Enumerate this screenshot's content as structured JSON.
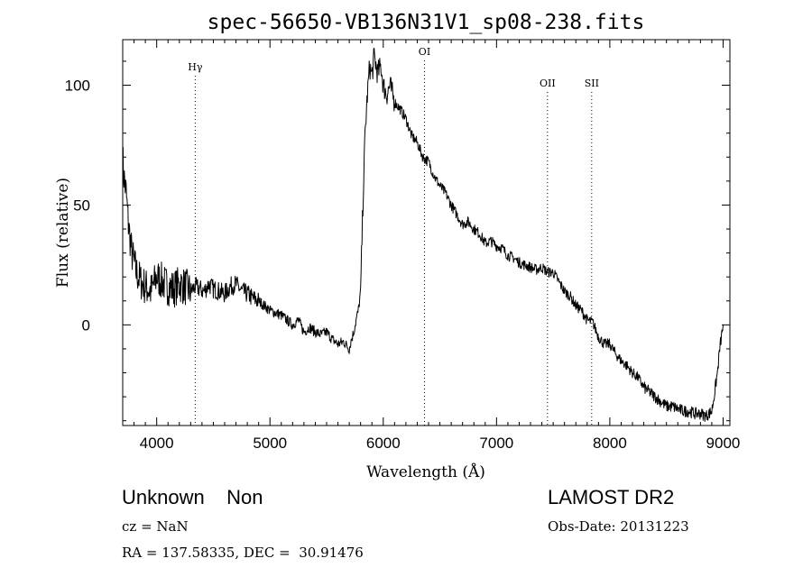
{
  "chart_data": {
    "type": "line",
    "title": "spec-56650-VB136N31V1_sp08-238.fits",
    "xlabel": "Wavelength (Å)",
    "ylabel": "Flux (relative)",
    "xlim": [
      3700,
      9060
    ],
    "ylim": [
      -42,
      119
    ],
    "xticks": [
      4000,
      5000,
      6000,
      7000,
      8000,
      9000
    ],
    "yticks": [
      0,
      50,
      100
    ],
    "grid": false,
    "series": [
      {
        "x": [
          3700,
          3710,
          3730,
          3750,
          3780,
          3820,
          3860,
          3900,
          3950,
          4000,
          4050,
          4100,
          4150,
          4200,
          4250,
          4300,
          4340,
          4380,
          4420,
          4460,
          4500,
          4550,
          4600,
          4650,
          4700,
          4750,
          4800,
          4850,
          4900,
          4950,
          5000,
          5050,
          5100,
          5150,
          5200,
          5250,
          5300,
          5350,
          5400,
          5450,
          5500,
          5550,
          5600,
          5650,
          5700,
          5720,
          5740,
          5760,
          5780,
          5800,
          5820,
          5840,
          5860,
          5880,
          5900,
          5920,
          5950,
          5980,
          6000,
          6030,
          6060,
          6100,
          6150,
          6200,
          6250,
          6300,
          6350,
          6400,
          6450,
          6500,
          6550,
          6600,
          6650,
          6700,
          6750,
          6800,
          6850,
          6900,
          6950,
          7000,
          7050,
          7100,
          7150,
          7200,
          7250,
          7300,
          7350,
          7400,
          7450,
          7500,
          7550,
          7600,
          7650,
          7700,
          7750,
          7800,
          7850,
          7900,
          7950,
          8000,
          8050,
          8100,
          8150,
          8200,
          8250,
          8300,
          8350,
          8400,
          8450,
          8500,
          8550,
          8600,
          8650,
          8700,
          8750,
          8800,
          8850,
          8900,
          8920,
          8950,
          8970,
          9000
        ],
        "y": [
          70,
          62,
          55,
          42,
          30,
          22,
          18,
          16,
          14,
          20,
          18,
          16,
          15,
          17,
          16,
          14,
          16,
          15,
          14,
          17,
          15,
          14,
          13,
          16,
          17,
          14,
          13,
          11,
          10,
          8,
          6,
          5,
          4,
          2,
          0,
          2,
          -3,
          -1,
          -3,
          -4,
          -3,
          -6,
          -8,
          -7,
          -10,
          -6,
          -3,
          2,
          6,
          14,
          50,
          80,
          96,
          108,
          104,
          112,
          105,
          108,
          100,
          96,
          100,
          93,
          90,
          86,
          79,
          76,
          70,
          68,
          62,
          58,
          55,
          50,
          46,
          42,
          43,
          40,
          38,
          34,
          35,
          33,
          32,
          29,
          28,
          26,
          25,
          24,
          23,
          24,
          22,
          22,
          18,
          14,
          12,
          8,
          6,
          2,
          1,
          -5,
          -8,
          -8,
          -12,
          -15,
          -17,
          -20,
          -22,
          -26,
          -28,
          -30,
          -32,
          -34,
          -34,
          -35,
          -36,
          -36,
          -37,
          -37,
          -38,
          -36,
          -30,
          -20,
          -10,
          0
        ]
      }
    ],
    "line_markers": [
      {
        "label": "Hγ",
        "x": 4340
      },
      {
        "label": "OI",
        "x": 6364
      },
      {
        "label": "OII",
        "x": 7450
      },
      {
        "label": "SII",
        "x": 7840
      }
    ]
  },
  "footer": {
    "class_text": "Unknown    Non",
    "cz_text": "cz = NaN",
    "radec_text": "RA = 137.58335, DEC =  30.91476",
    "survey_text": "LAMOST DR2",
    "obsdate_text": "Obs-Date: 20131223"
  }
}
